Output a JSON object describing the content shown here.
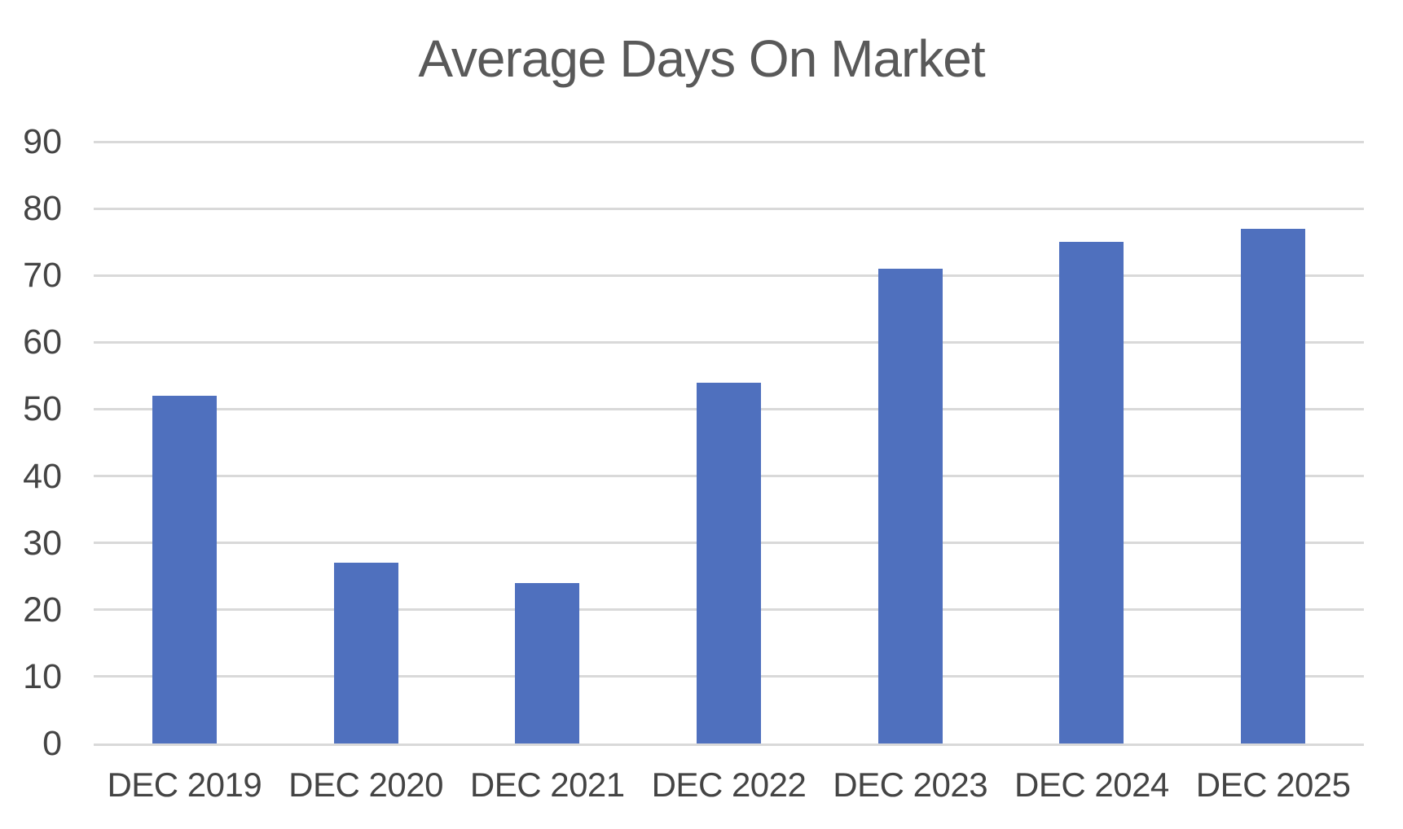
{
  "chart_data": {
    "type": "bar",
    "title": "Average Days On Market",
    "categories": [
      "DEC 2019",
      "DEC 2020",
      "DEC 2021",
      "DEC 2022",
      "DEC 2023",
      "DEC 2024",
      "DEC 2025"
    ],
    "values": [
      52,
      27,
      24,
      54,
      71,
      75,
      77
    ],
    "xlabel": "",
    "ylabel": "",
    "ylim": [
      0,
      90
    ],
    "yticks": [
      0,
      10,
      20,
      30,
      40,
      50,
      60,
      70,
      80,
      90
    ],
    "grid": "horizontal",
    "legend": "none",
    "series_name": "Average Days On Market",
    "colors": {
      "bar": "#4F70BE",
      "gridline": "#D9D9D9",
      "title_text": "#595959",
      "axis_text": "#444444",
      "background": "#FFFFFF"
    }
  }
}
